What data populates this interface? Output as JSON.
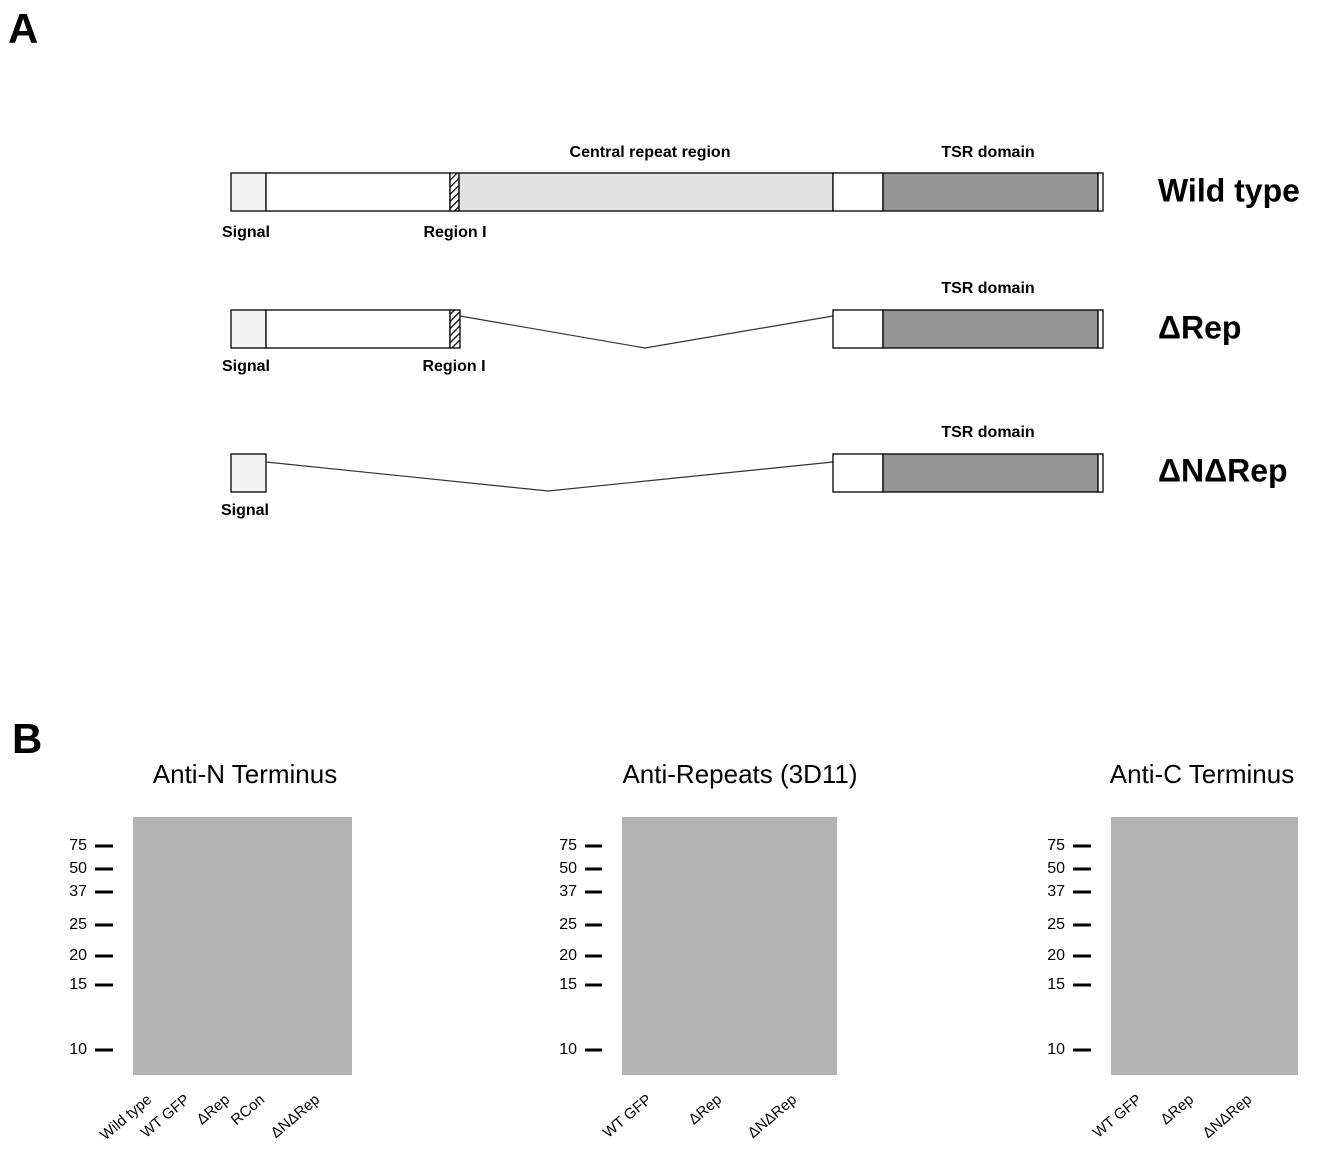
{
  "panel_a": {
    "label": "A",
    "constructs": [
      {
        "name": "Wild type",
        "top_labels": [
          "Central repeat region",
          "TSR domain"
        ],
        "bottom_labels": [
          "Signal",
          "Region I"
        ]
      },
      {
        "name": "ΔRep",
        "top_labels": [
          "TSR domain"
        ],
        "bottom_labels": [
          "Signal",
          "Region I"
        ]
      },
      {
        "name": "ΔNΔRep",
        "top_labels": [
          "TSR domain"
        ],
        "bottom_labels": [
          "Signal"
        ]
      }
    ]
  },
  "panel_b": {
    "label": "B",
    "blots": [
      {
        "title": "Anti-N Terminus",
        "markers": [
          75,
          50,
          37,
          25,
          20,
          15,
          10
        ],
        "lanes": [
          "Wild type",
          "WT GFP",
          "ΔRep",
          "RCon",
          "ΔNΔRep"
        ]
      },
      {
        "title": "Anti-Repeats (3D11)",
        "markers": [
          75,
          50,
          37,
          25,
          20,
          15,
          10
        ],
        "lanes": [
          "WT GFP",
          "ΔRep",
          "ΔNΔRep"
        ]
      },
      {
        "title": "Anti-C Terminus",
        "markers": [
          75,
          50,
          37,
          25,
          20,
          15,
          10
        ],
        "lanes": [
          "WT GFP",
          "ΔRep",
          "ΔNΔRep"
        ]
      }
    ]
  }
}
